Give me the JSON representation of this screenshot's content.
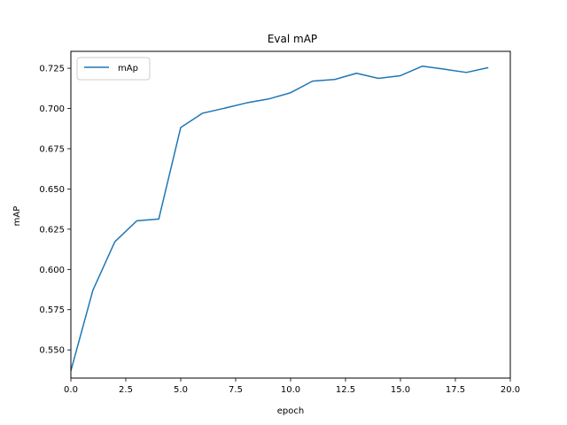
{
  "chart_data": {
    "type": "line",
    "title": "Eval mAP",
    "xlabel": "epoch",
    "ylabel": "mAP",
    "xlim": [
      0,
      20
    ],
    "ylim": [
      0.5325,
      0.7355
    ],
    "xticks": [
      0,
      2.5,
      5,
      7.5,
      10,
      12.5,
      15,
      17.5,
      20
    ],
    "xtick_labels": [
      "0.0",
      "2.5",
      "5.0",
      "7.5",
      "10.0",
      "12.5",
      "15.0",
      "17.5",
      "20.0"
    ],
    "yticks": [
      0.55,
      0.575,
      0.6,
      0.625,
      0.65,
      0.675,
      0.7,
      0.725
    ],
    "ytick_labels": [
      "0.550",
      "0.575",
      "0.600",
      "0.625",
      "0.650",
      "0.675",
      "0.700",
      "0.725"
    ],
    "grid": false,
    "legend_position": "top-left",
    "series": [
      {
        "name": "mAp",
        "color": "#1f77b4",
        "x": [
          0,
          1,
          2,
          3,
          4,
          5,
          6,
          7,
          8,
          9,
          10,
          11,
          12,
          13,
          14,
          15,
          16,
          17,
          18,
          19
        ],
        "values": [
          0.537,
          0.587,
          0.6172,
          0.6302,
          0.6313,
          0.6882,
          0.6971,
          0.7002,
          0.7035,
          0.7059,
          0.7098,
          0.717,
          0.718,
          0.7219,
          0.7187,
          0.7204,
          0.7263,
          0.7244,
          0.7224,
          0.7254
        ]
      }
    ]
  }
}
